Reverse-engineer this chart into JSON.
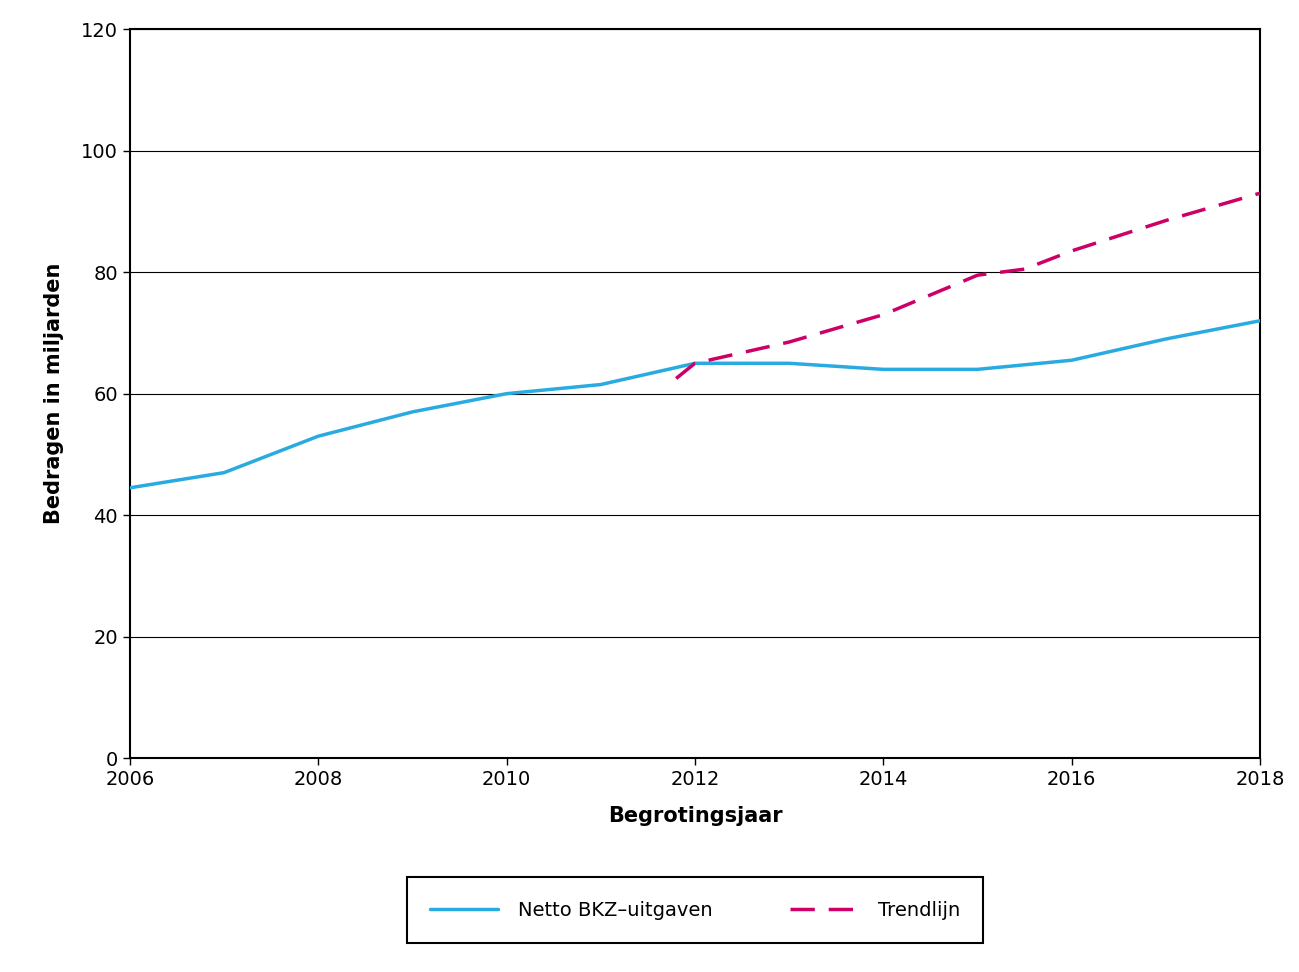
{
  "xlabel": "Begrotingsjaar",
  "ylabel": "Bedragen in miljarden",
  "xlim": [
    2006,
    2018
  ],
  "ylim": [
    0,
    120
  ],
  "yticks": [
    0,
    20,
    40,
    60,
    80,
    100,
    120
  ],
  "xticks": [
    2006,
    2008,
    2010,
    2012,
    2014,
    2016,
    2018
  ],
  "netto_x": [
    2006,
    2007,
    2008,
    2009,
    2010,
    2011,
    2012,
    2013,
    2014,
    2015,
    2016,
    2017,
    2018
  ],
  "netto_y": [
    44.5,
    47.0,
    53.0,
    57.0,
    60.0,
    61.5,
    65.0,
    65.0,
    64.0,
    64.0,
    65.5,
    69.0,
    72.0
  ],
  "trend_x": [
    2011.8,
    2012,
    2013,
    2014,
    2015,
    2015.5,
    2016,
    2017,
    2018
  ],
  "trend_y": [
    62.5,
    65.0,
    68.5,
    73.0,
    79.5,
    80.5,
    83.5,
    88.5,
    93.0
  ],
  "netto_color": "#29ABE2",
  "trend_color": "#CC0066",
  "netto_linewidth": 2.5,
  "trend_linewidth": 2.5,
  "legend_netto_label": "Netto BKZ–uitgaven",
  "legend_trend_label": "Trendlijn",
  "background_color": "#ffffff",
  "grid_color": "#000000",
  "grid_linewidth": 0.8,
  "axis_label_fontsize": 15,
  "tick_fontsize": 14,
  "legend_fontsize": 14,
  "spine_color": "#000000",
  "spine_linewidth": 1.5
}
